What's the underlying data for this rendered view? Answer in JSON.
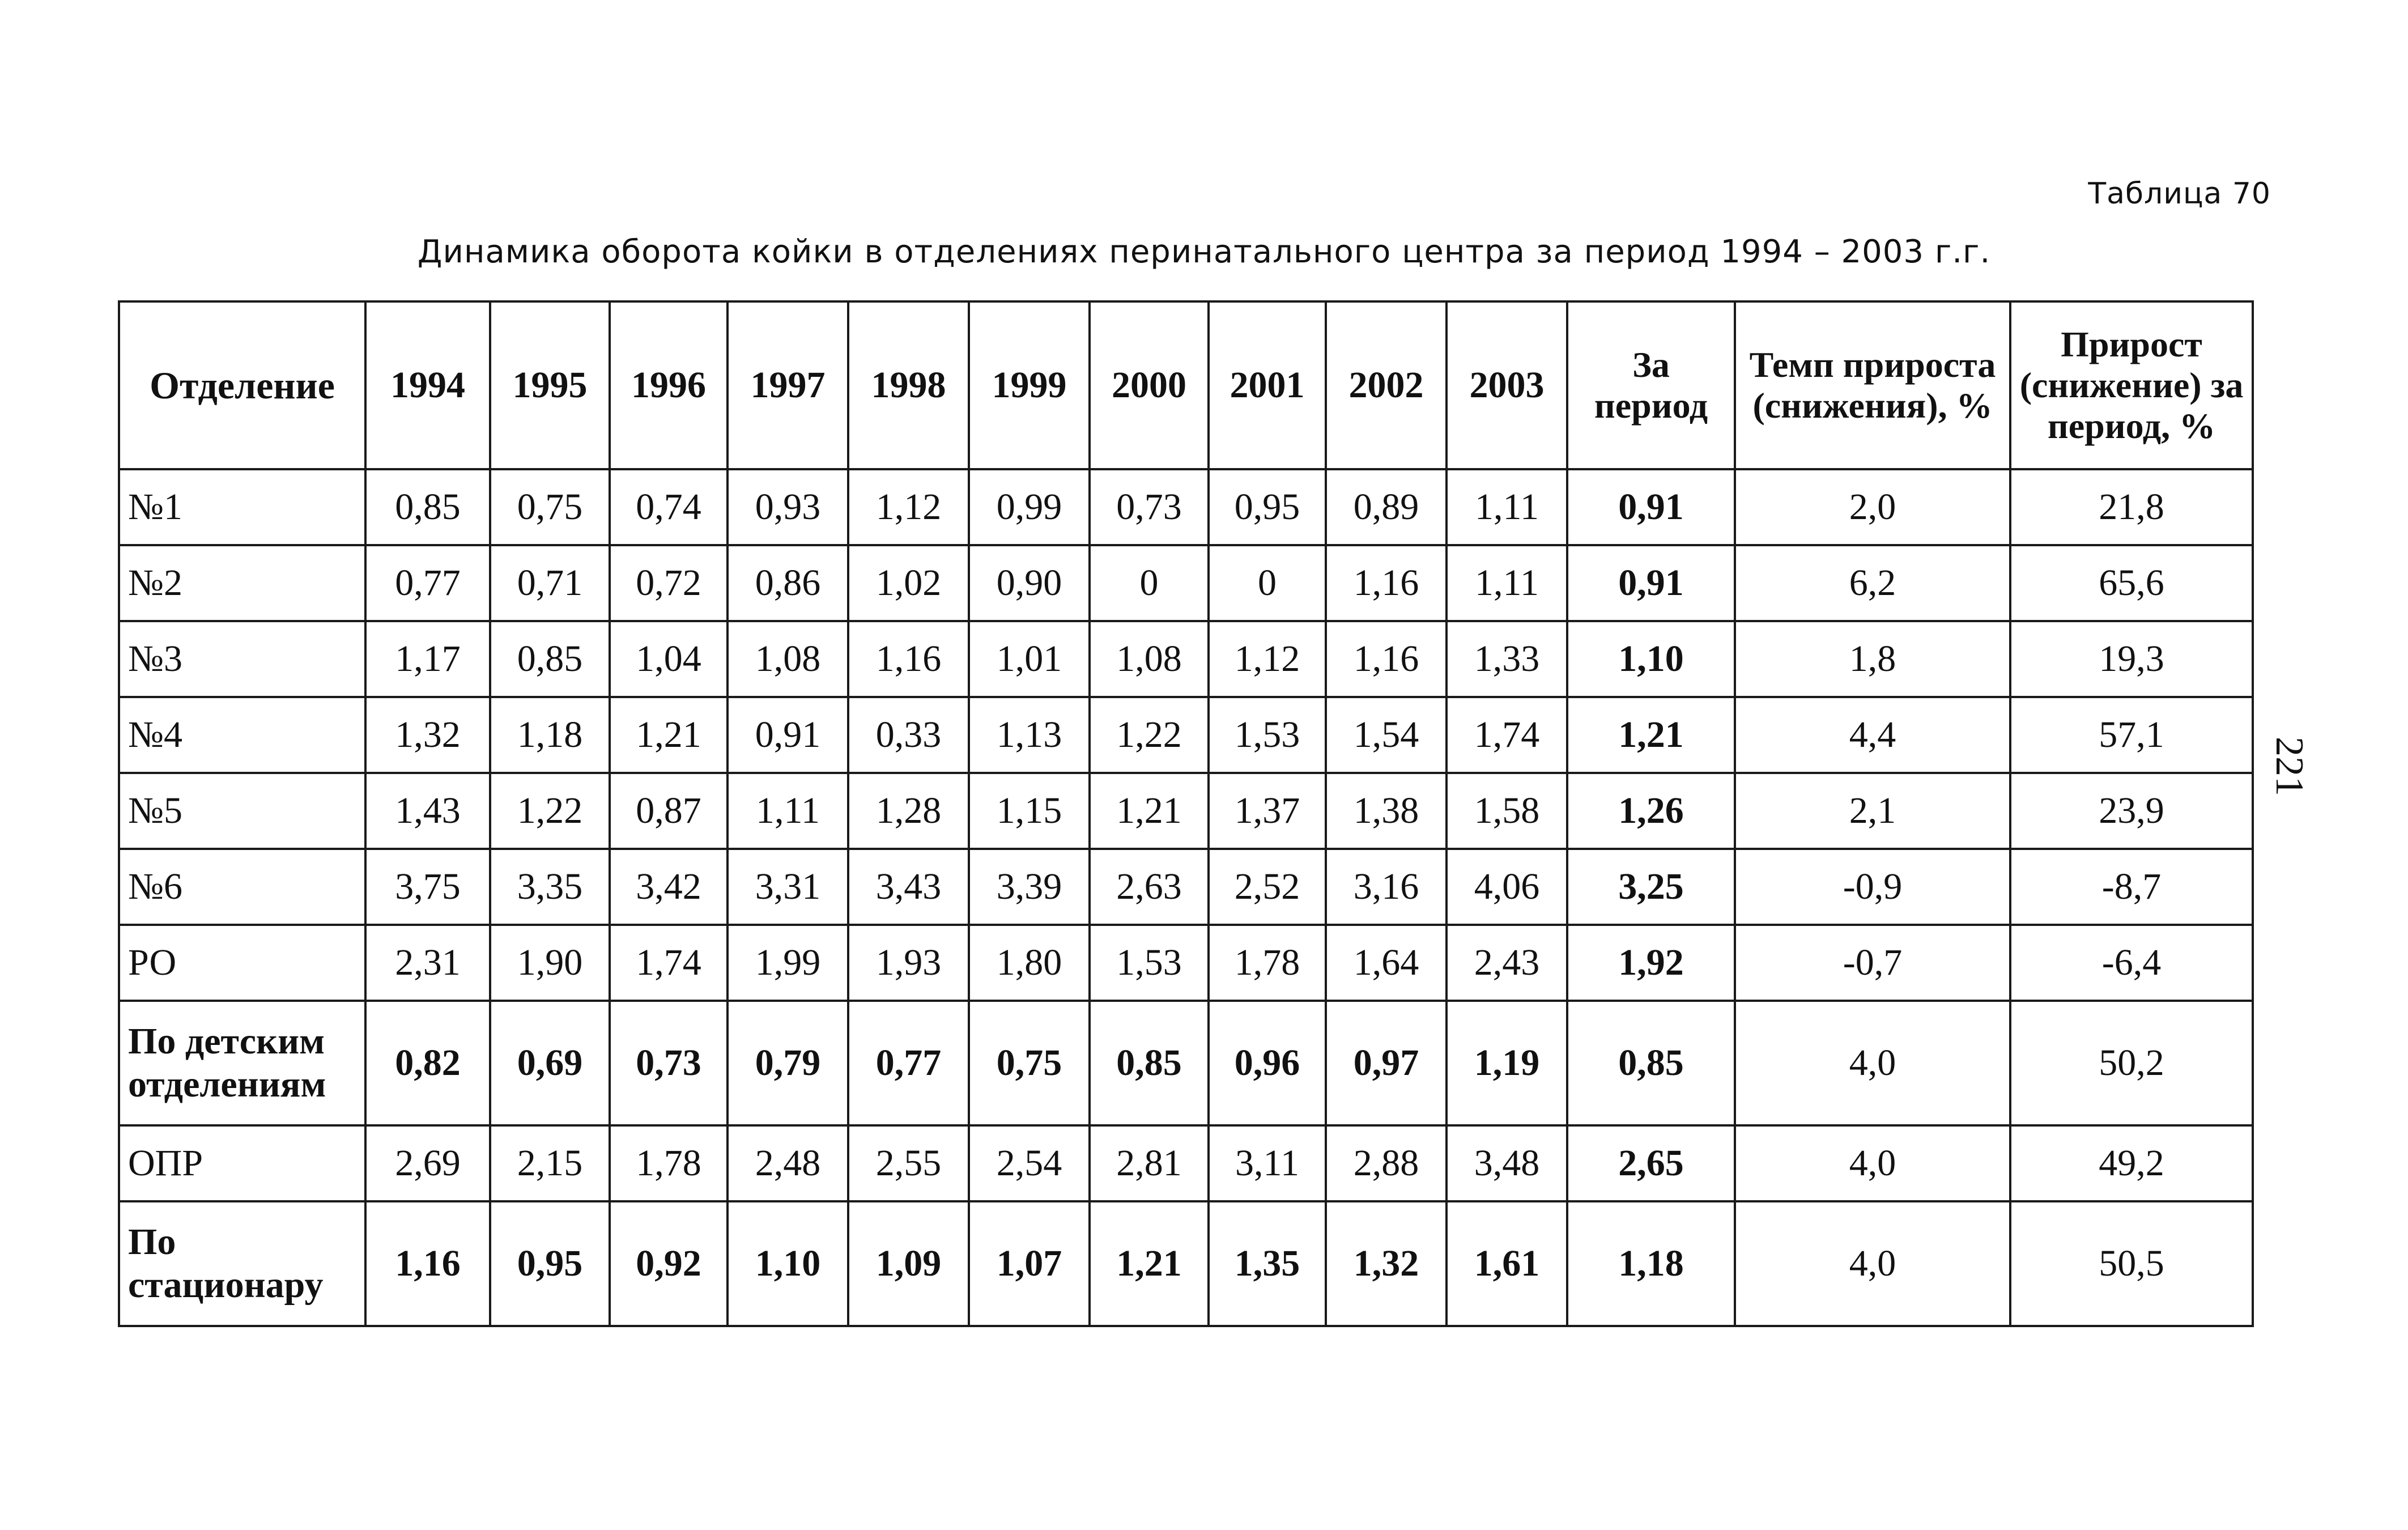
{
  "table_number": "Таблица 70",
  "title": "Динамика оборота койки в отделениях перинатального центра за период 1994 – 2003 г.г.",
  "page_number": "221",
  "columns": [
    "Отделение",
    "1994",
    "1995",
    "1996",
    "1997",
    "1998",
    "1999",
    "2000",
    "2001",
    "2002",
    "2003",
    "За период",
    "Темп прироста (снижения), %",
    "Прирост (снижение) за период, %"
  ],
  "rows": [
    {
      "name": "№1",
      "name_bold": false,
      "values_bold": false,
      "values": [
        "0,85",
        "0,75",
        "0,74",
        "0,93",
        "1,12",
        "0,99",
        "0,73",
        "0,95",
        "0,89",
        "1,11"
      ],
      "period": "0,91",
      "period_bold": true,
      "rate": "2,0",
      "growth": "21,8"
    },
    {
      "name": "№2",
      "name_bold": false,
      "values_bold": false,
      "values": [
        "0,77",
        "0,71",
        "0,72",
        "0,86",
        "1,02",
        "0,90",
        "0",
        "0",
        "1,16",
        "1,11"
      ],
      "period": "0,91",
      "period_bold": true,
      "rate": "6,2",
      "growth": "65,6"
    },
    {
      "name": "№3",
      "name_bold": false,
      "values_bold": false,
      "values": [
        "1,17",
        "0,85",
        "1,04",
        "1,08",
        "1,16",
        "1,01",
        "1,08",
        "1,12",
        "1,16",
        "1,33"
      ],
      "period": "1,10",
      "period_bold": true,
      "rate": "1,8",
      "growth": "19,3"
    },
    {
      "name": "№4",
      "name_bold": false,
      "values_bold": false,
      "values": [
        "1,32",
        "1,18",
        "1,21",
        "0,91",
        "0,33",
        "1,13",
        "1,22",
        "1,53",
        "1,54",
        "1,74"
      ],
      "period": "1,21",
      "period_bold": true,
      "rate": "4,4",
      "growth": "57,1"
    },
    {
      "name": "№5",
      "name_bold": false,
      "values_bold": false,
      "values": [
        "1,43",
        "1,22",
        "0,87",
        "1,11",
        "1,28",
        "1,15",
        "1,21",
        "1,37",
        "1,38",
        "1,58"
      ],
      "period": "1,26",
      "period_bold": true,
      "rate": "2,1",
      "growth": "23,9"
    },
    {
      "name": "№6",
      "name_bold": false,
      "values_bold": false,
      "values": [
        "3,75",
        "3,35",
        "3,42",
        "3,31",
        "3,43",
        "3,39",
        "2,63",
        "2,52",
        "3,16",
        "4,06"
      ],
      "period": "3,25",
      "period_bold": true,
      "rate": "-0,9",
      "growth": "-8,7"
    },
    {
      "name": "РО",
      "name_bold": false,
      "values_bold": false,
      "values": [
        "2,31",
        "1,90",
        "1,74",
        "1,99",
        "1,93",
        "1,80",
        "1,53",
        "1,78",
        "1,64",
        "2,43"
      ],
      "period": "1,92",
      "period_bold": true,
      "rate": "-0,7",
      "growth": "-6,4"
    },
    {
      "name": "По детским отделениям",
      "name_bold": true,
      "values_bold": true,
      "values": [
        "0,82",
        "0,69",
        "0,73",
        "0,79",
        "0,77",
        "0,75",
        "0,85",
        "0,96",
        "0,97",
        "1,19"
      ],
      "period": "0,85",
      "period_bold": true,
      "rate": "4,0",
      "growth": "50,2"
    },
    {
      "name": "ОПР",
      "name_bold": false,
      "values_bold": false,
      "values": [
        "2,69",
        "2,15",
        "1,78",
        "2,48",
        "2,55",
        "2,54",
        "2,81",
        "3,11",
        "2,88",
        "3,48"
      ],
      "period": "2,65",
      "period_bold": true,
      "rate": "4,0",
      "growth": "49,2"
    },
    {
      "name": "По стационару",
      "name_bold": true,
      "values_bold": true,
      "values": [
        "1,16",
        "0,95",
        "0,92",
        "1,10",
        "1,09",
        "1,07",
        "1,21",
        "1,35",
        "1,32",
        "1,61"
      ],
      "period": "1,18",
      "period_bold": true,
      "rate": "4,0",
      "growth": "50,5"
    }
  ]
}
